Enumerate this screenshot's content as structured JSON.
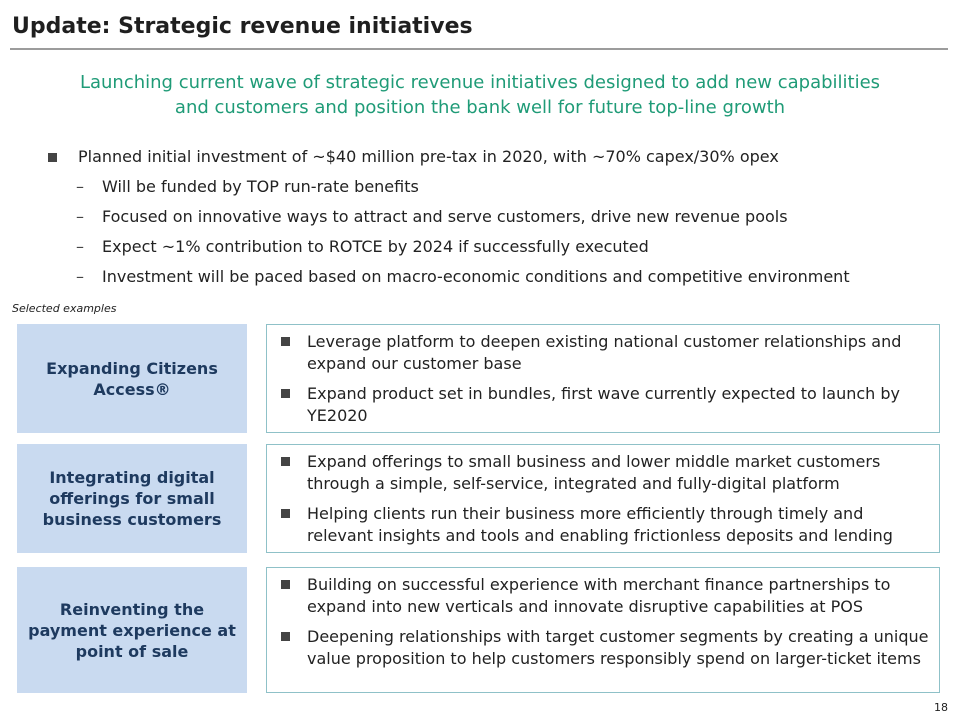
{
  "title": "Update: Strategic revenue initiatives",
  "subtitle_line1": "Launching current wave of strategic revenue initiatives designed to add new capabilities",
  "subtitle_line2": "and customers and position the bank well for future top-line growth",
  "bullets": {
    "main": "Planned initial investment of ~$40 million pre-tax in 2020, with ~70% capex/30% opex",
    "subs": [
      "Will be funded by TOP run-rate benefits",
      "Focused on innovative ways to attract and serve customers, drive new revenue pools",
      "Expect ~1% contribution to ROTCE by 2024 if successfully executed",
      "Investment will be paced based on macro-economic conditions and competitive environment"
    ]
  },
  "selected_label": "Selected examples",
  "initiatives": [
    {
      "label_lines": [
        "Expanding Citizens",
        "Access®"
      ],
      "points": [
        "Leverage platform to deepen existing national customer relationships and expand our customer base",
        "Expand product set in bundles, first wave currently expected to launch by YE2020"
      ]
    },
    {
      "label_lines": [
        "Integrating digital",
        "offerings for small",
        "business customers"
      ],
      "points": [
        "Expand offerings to small business and lower middle market customers through a simple, self-service, integrated and fully-digital platform",
        "Helping clients run their business more efficiently through timely and relevant insights and tools and enabling frictionless deposits and lending"
      ]
    },
    {
      "label_lines": [
        "Reinventing the",
        "payment experience at",
        "point of sale"
      ],
      "points": [
        "Building on successful experience with merchant finance partnerships to expand into new verticals and innovate disruptive capabilities at POS",
        "Deepening relationships with target customer segments by creating a unique value proposition to help customers responsibly spend on larger-ticket items"
      ]
    }
  ],
  "page_number": "18",
  "colors": {
    "subtitle": "#1f9b77",
    "label_box": "#c9daf0",
    "content_border": "#8fc1c8"
  }
}
